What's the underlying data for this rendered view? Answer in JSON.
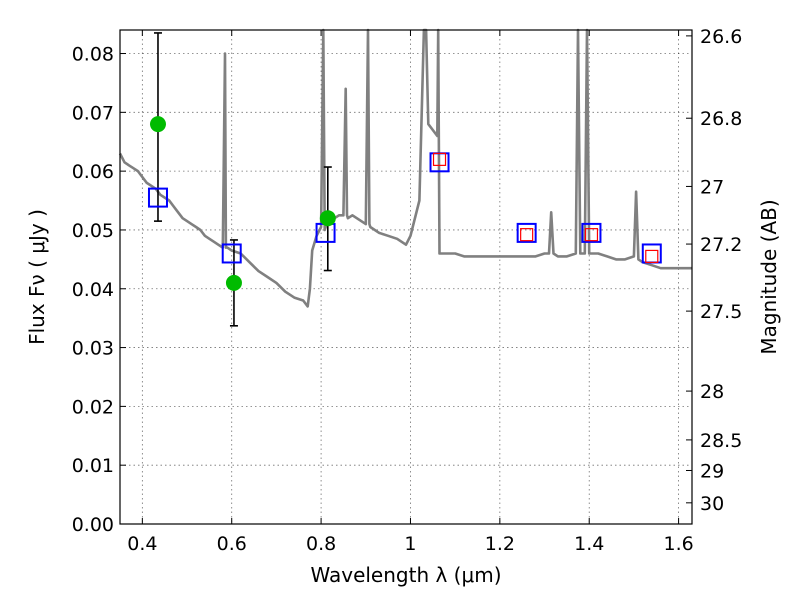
{
  "chart_data": {
    "type": "scatter",
    "xlabel": "Wavelength  λ (μm)",
    "ylabel": "Flux  Fν  ( μJy )",
    "y2label": "Magnitude (AB)",
    "xlim": [
      0.35,
      1.63
    ],
    "ylim": [
      0.0,
      0.084
    ],
    "grid": true,
    "x_ticks": [
      0.4,
      0.6,
      0.8,
      1.0,
      1.2,
      1.4,
      1.6
    ],
    "x_tick_labels": [
      "0.4",
      "0.6",
      "0.8",
      "1",
      "1.2",
      "1.4",
      "1.6"
    ],
    "y_ticks": [
      0.0,
      0.01,
      0.02,
      0.03,
      0.04,
      0.05,
      0.06,
      0.07,
      0.08
    ],
    "y_tick_labels": [
      "0.00",
      "0.01",
      "0.02",
      "0.03",
      "0.04",
      "0.05",
      "0.06",
      "0.07",
      "0.08"
    ],
    "y2_ticks": [
      {
        "label": "26.6",
        "flux": 0.083
      },
      {
        "label": "26.8",
        "flux": 0.069
      },
      {
        "label": "27",
        "flux": 0.0574
      },
      {
        "label": "27.2",
        "flux": 0.0476
      },
      {
        "label": "27.5",
        "flux": 0.0362
      },
      {
        "label": "28",
        "flux": 0.0226
      },
      {
        "label": "28.5",
        "flux": 0.0143
      },
      {
        "label": "29",
        "flux": 0.0091
      },
      {
        "label": "30",
        "flux": 0.0036
      }
    ],
    "colors": {
      "model_spectrum": "#808080",
      "observed": "#00bb00",
      "model_photometry": "#0000ff",
      "secondary_photometry": "#ff0000",
      "error_bar": "#000000"
    },
    "series": [
      {
        "kind": "spectrum",
        "x": [
          0.35,
          0.36,
          0.37,
          0.38,
          0.39,
          0.4,
          0.41,
          0.42,
          0.43,
          0.44,
          0.45,
          0.46,
          0.47,
          0.48,
          0.49,
          0.5,
          0.51,
          0.52,
          0.53,
          0.54,
          0.55,
          0.56,
          0.57,
          0.58,
          0.585,
          0.587,
          0.59,
          0.6,
          0.62,
          0.64,
          0.66,
          0.68,
          0.7,
          0.72,
          0.74,
          0.76,
          0.77,
          0.775,
          0.78,
          0.79,
          0.8,
          0.805,
          0.808,
          0.81,
          0.82,
          0.83,
          0.84,
          0.85,
          0.855,
          0.858,
          0.86,
          0.87,
          0.88,
          0.9,
          0.905,
          0.908,
          0.91,
          0.93,
          0.95,
          0.97,
          0.99,
          1.0,
          1.02,
          1.03,
          1.035,
          1.04,
          1.05,
          1.06,
          1.062,
          1.065,
          1.07,
          1.08,
          1.1,
          1.12,
          1.14,
          1.16,
          1.18,
          1.2,
          1.22,
          1.24,
          1.26,
          1.28,
          1.3,
          1.31,
          1.315,
          1.32,
          1.33,
          1.35,
          1.37,
          1.375,
          1.38,
          1.39,
          1.395,
          1.4,
          1.42,
          1.44,
          1.46,
          1.48,
          1.5,
          1.505,
          1.51,
          1.52,
          1.54,
          1.56,
          1.58,
          1.6,
          1.63
        ],
        "y": [
          0.063,
          0.0615,
          0.061,
          0.0605,
          0.06,
          0.059,
          0.058,
          0.0575,
          0.057,
          0.056,
          0.0555,
          0.055,
          0.054,
          0.053,
          0.052,
          0.0515,
          0.051,
          0.0505,
          0.05,
          0.049,
          0.0485,
          0.048,
          0.0475,
          0.047,
          0.08,
          0.047,
          0.047,
          0.0465,
          0.046,
          0.0445,
          0.043,
          0.042,
          0.041,
          0.0395,
          0.0385,
          0.038,
          0.037,
          0.04,
          0.0465,
          0.049,
          0.0505,
          0.085,
          0.05,
          0.0505,
          0.0515,
          0.052,
          0.0525,
          0.0525,
          0.074,
          0.0525,
          0.052,
          0.0525,
          0.052,
          0.051,
          0.085,
          0.051,
          0.0505,
          0.0495,
          0.049,
          0.0485,
          0.0475,
          0.049,
          0.055,
          0.085,
          0.085,
          0.068,
          0.067,
          0.066,
          0.085,
          0.046,
          0.046,
          0.046,
          0.046,
          0.0455,
          0.0455,
          0.0455,
          0.0455,
          0.0455,
          0.0455,
          0.0455,
          0.0455,
          0.0455,
          0.046,
          0.046,
          0.053,
          0.046,
          0.0455,
          0.0455,
          0.046,
          0.085,
          0.046,
          0.046,
          0.085,
          0.046,
          0.046,
          0.0455,
          0.045,
          0.045,
          0.0455,
          0.0565,
          0.045,
          0.0445,
          0.044,
          0.0435,
          0.0435,
          0.0435,
          0.0435
        ]
      },
      {
        "kind": "observed",
        "name": "",
        "x": [
          0.435,
          0.605,
          0.815
        ],
        "y": [
          0.068,
          0.041,
          0.052
        ],
        "yerr_low": [
          0.0165,
          0.0073,
          0.0089
        ],
        "yerr_high": [
          0.0155,
          0.0073,
          0.0087
        ]
      },
      {
        "kind": "model_photometry",
        "x": [
          0.435,
          0.6,
          0.81,
          1.065,
          1.26,
          1.405,
          1.54
        ],
        "y": [
          0.0555,
          0.046,
          0.0495,
          0.0615,
          0.0495,
          0.0495,
          0.046
        ]
      },
      {
        "kind": "secondary_photometry",
        "x": [
          1.065,
          1.26,
          1.405,
          1.54
        ],
        "y": [
          0.062,
          0.0492,
          0.0492,
          0.0455
        ]
      }
    ]
  }
}
